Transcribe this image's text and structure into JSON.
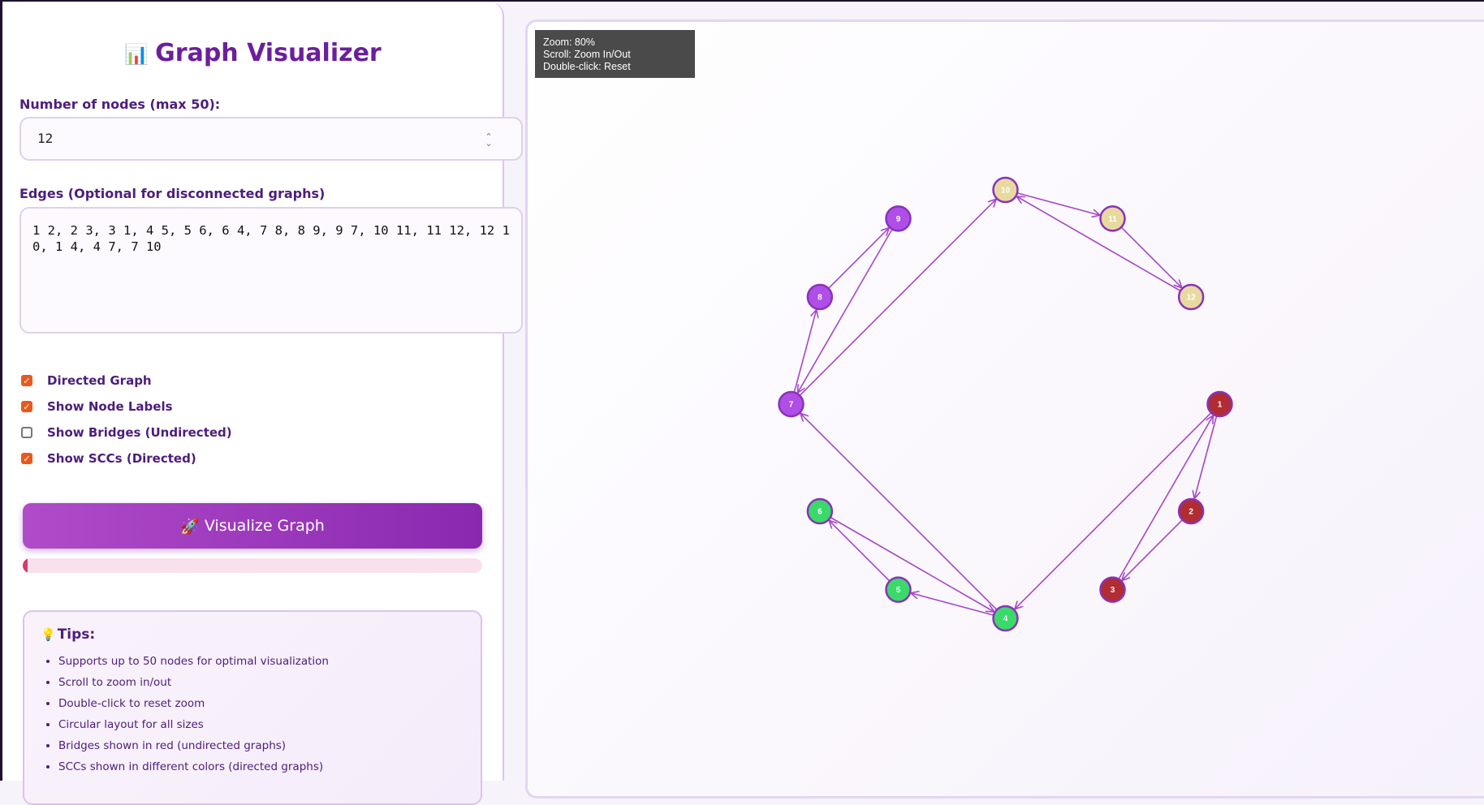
{
  "sidebar": {
    "title_emoji": "📊",
    "title": "Graph Visualizer",
    "nodes_label": "Number of nodes (max 50):",
    "nodes_value": "12",
    "edges_label": "Edges (Optional for disconnected graphs)",
    "edges_value": "1 2, 2 3, 3 1, 4 5, 5 6, 6 4, 7 8, 8 9, 9 7, 10 11, 11 12, 12 10, 1 4, 4 7, 7 10",
    "options": [
      {
        "label": "Directed Graph",
        "checked": true
      },
      {
        "label": "Show Node Labels",
        "checked": true
      },
      {
        "label": "Show Bridges (Undirected)",
        "checked": false
      },
      {
        "label": "Show SCCs (Directed)",
        "checked": true
      }
    ],
    "visualize_emoji": "🚀",
    "visualize_label": "Visualize Graph",
    "progress": 0.01,
    "tips_emoji": "💡",
    "tips_title": "Tips:",
    "tips": [
      "Supports up to 50 nodes for optimal visualization",
      "Scroll to zoom in/out",
      "Double-click to reset zoom",
      "Circular layout for all sizes",
      "Bridges shown in red (undirected graphs)",
      "SCCs shown in different colors (directed graphs)"
    ]
  },
  "canvas": {
    "zoom_text": "Zoom: 80%",
    "scroll_text": "Scroll: Zoom In/Out",
    "reset_text": "Double-click: Reset"
  },
  "graph": {
    "edge_color": "#a646c8",
    "scc_colors": [
      "#b12c33",
      "#3ad96a",
      "#b04ee8",
      "#e8d9a0"
    ],
    "nodes": [
      {
        "id": "1",
        "scc": 0
      },
      {
        "id": "2",
        "scc": 0
      },
      {
        "id": "3",
        "scc": 0
      },
      {
        "id": "4",
        "scc": 1
      },
      {
        "id": "5",
        "scc": 1
      },
      {
        "id": "6",
        "scc": 1
      },
      {
        "id": "7",
        "scc": 2
      },
      {
        "id": "8",
        "scc": 2
      },
      {
        "id": "9",
        "scc": 2
      },
      {
        "id": "10",
        "scc": 3
      },
      {
        "id": "11",
        "scc": 3
      },
      {
        "id": "12",
        "scc": 3
      }
    ],
    "edges": [
      [
        1,
        2
      ],
      [
        2,
        3
      ],
      [
        3,
        1
      ],
      [
        4,
        5
      ],
      [
        5,
        6
      ],
      [
        6,
        4
      ],
      [
        7,
        8
      ],
      [
        8,
        9
      ],
      [
        9,
        7
      ],
      [
        10,
        11
      ],
      [
        11,
        12
      ],
      [
        12,
        10
      ],
      [
        1,
        4
      ],
      [
        4,
        7
      ],
      [
        7,
        10
      ]
    ]
  }
}
